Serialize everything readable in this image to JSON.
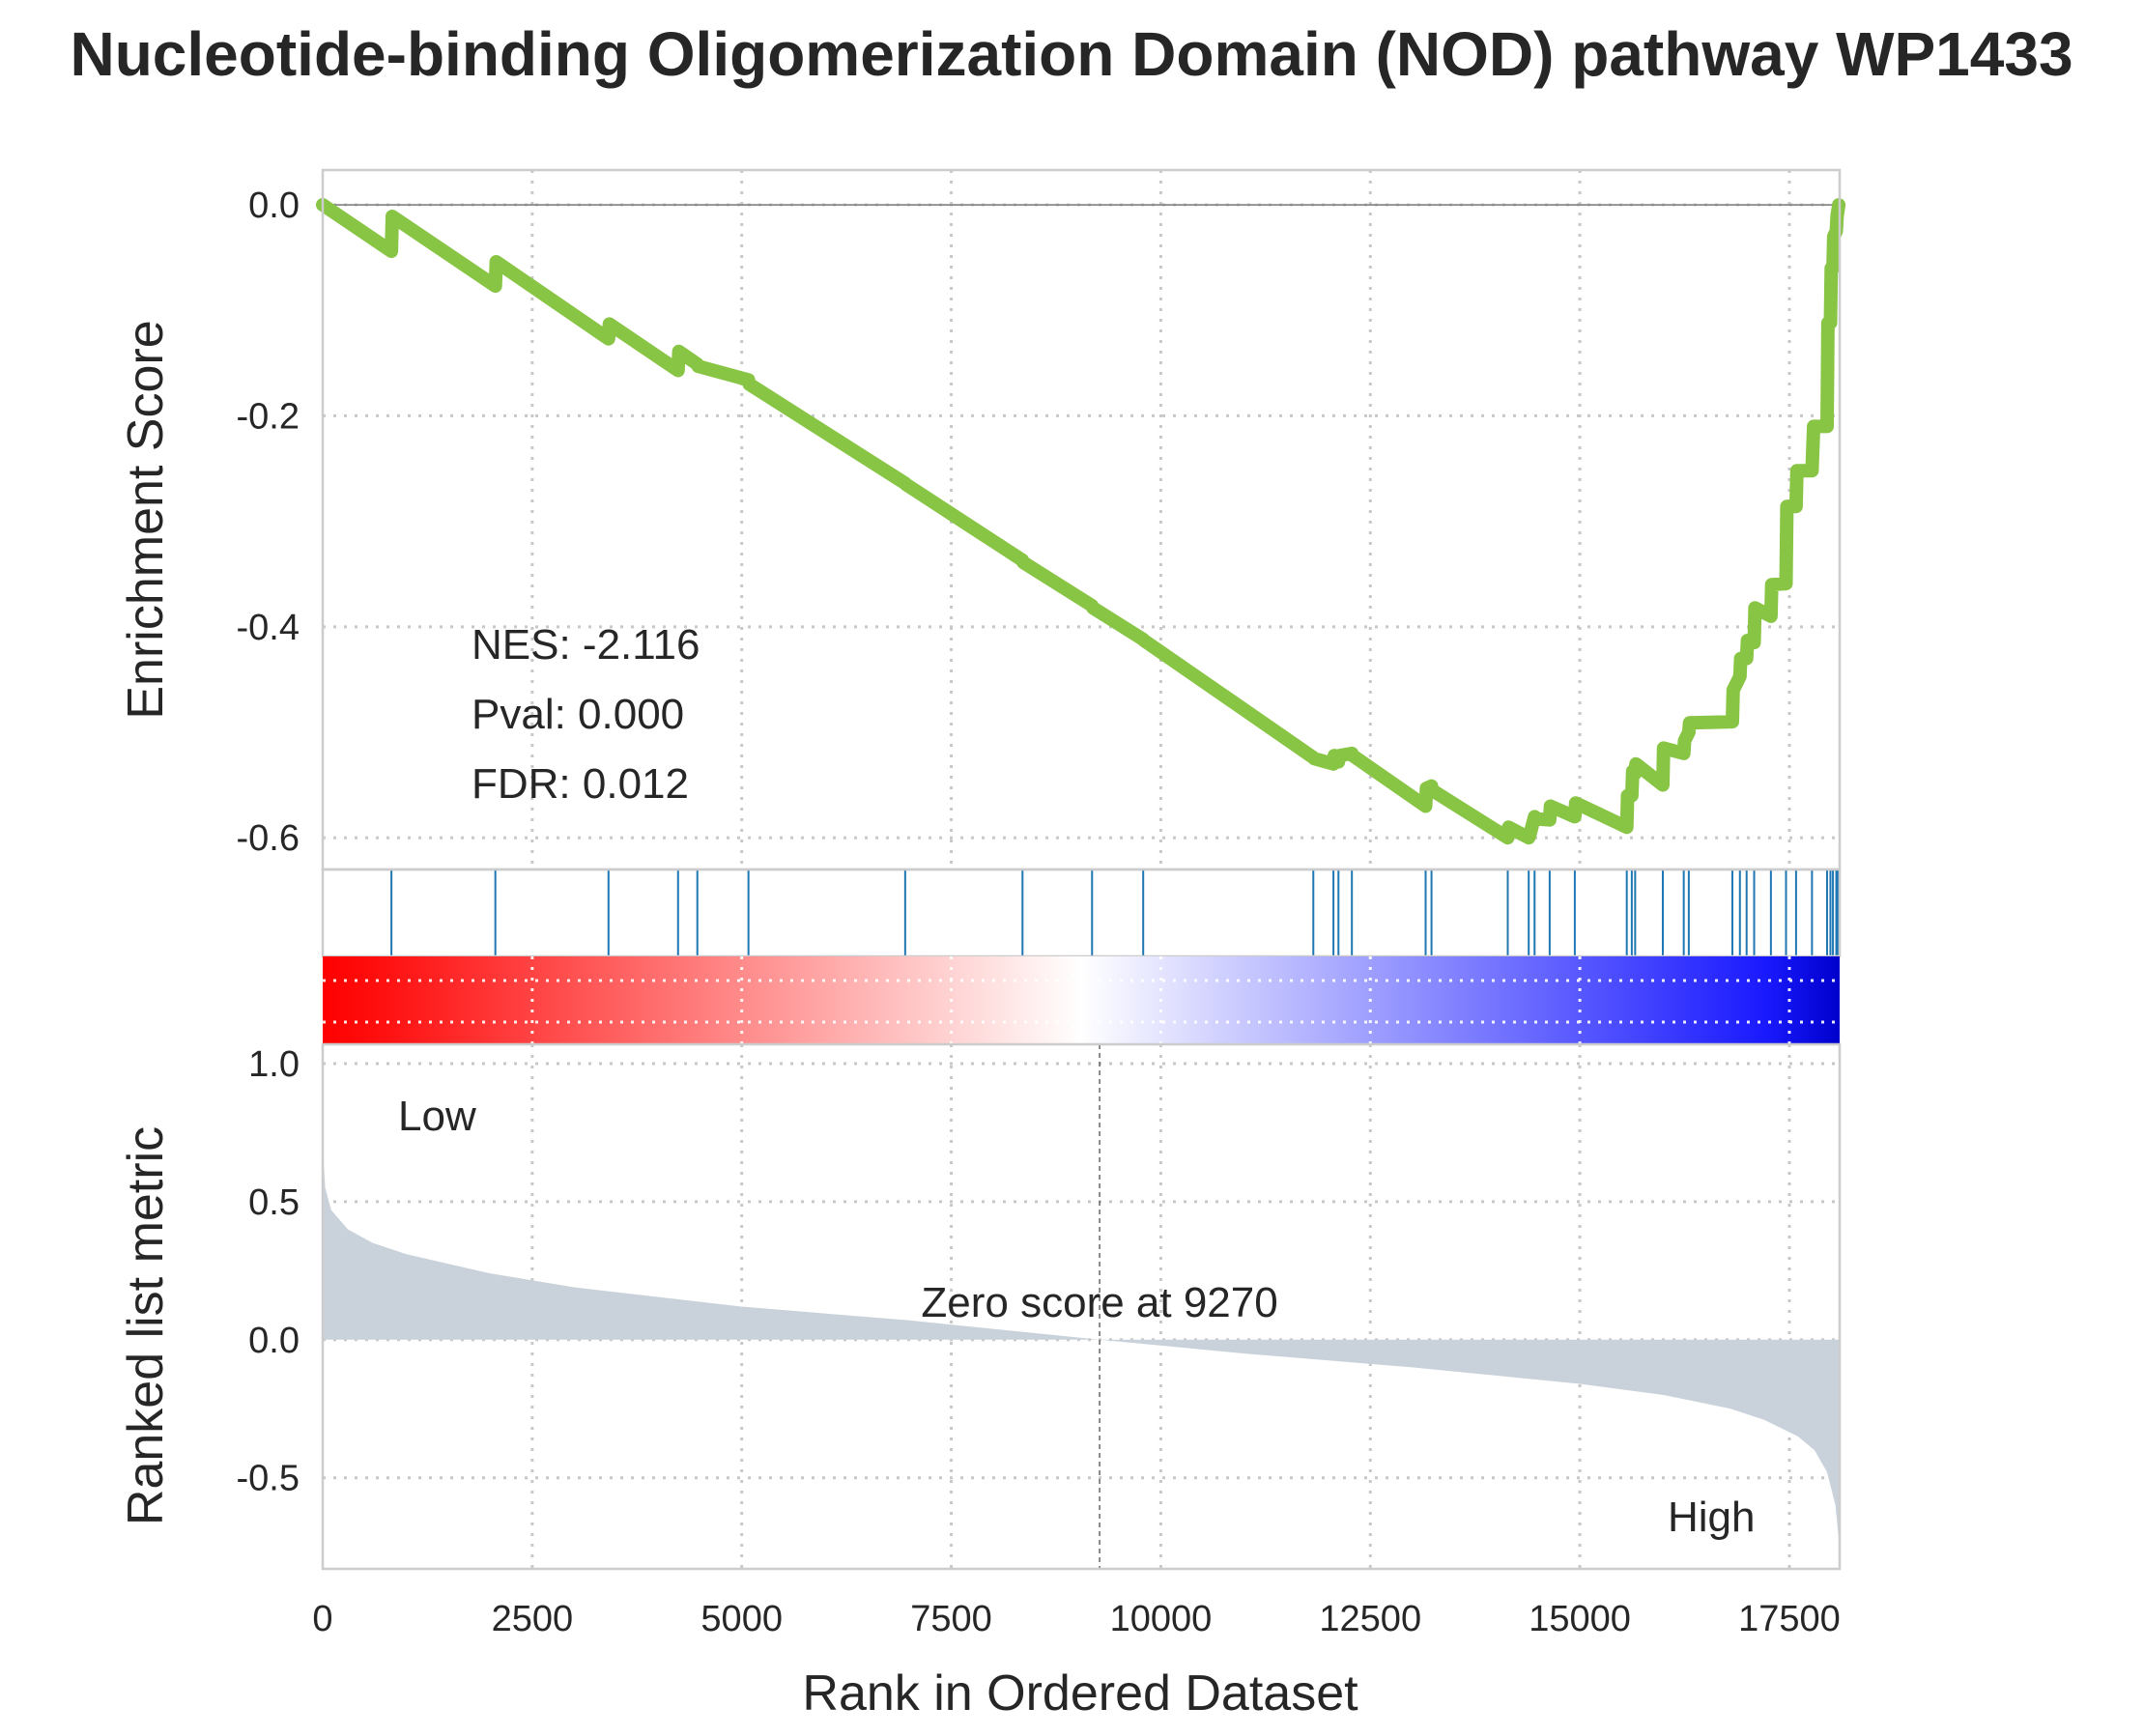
{
  "chart_data": {
    "type": "line",
    "title": "Nucleotide-binding Oligomerization Domain (NOD) pathway WP1433",
    "xlabel": "Rank in Ordered Dataset",
    "xlim": [
      0,
      18100
    ],
    "xticks": [
      "0",
      "2500",
      "5000",
      "7500",
      "10000",
      "12500",
      "15000",
      "17500"
    ],
    "enrichment": {
      "ylabel": "Enrichment Score",
      "ylim": [
        -0.63,
        0.033
      ],
      "yticks": [
        "0.0",
        "-0.2",
        "-0.4",
        "-0.6"
      ],
      "line_color": "#88c544",
      "hit_ranks": [
        820,
        2060,
        3410,
        4240,
        4470,
        5080,
        6950,
        8350,
        9180,
        9790,
        11820,
        12060,
        12120,
        12280,
        13160,
        13230,
        14140,
        14390,
        14460,
        14640,
        14940,
        15560,
        15620,
        15660,
        15990,
        16240,
        16300,
        16820,
        16910,
        16990,
        17080,
        17280,
        17460,
        17580,
        17770,
        17950,
        17990,
        18020,
        18060,
        18080
      ],
      "x": [
        0,
        820,
        830,
        2060,
        2070,
        3410,
        3420,
        4240,
        4250,
        4470,
        4480,
        5080,
        5090,
        6950,
        6960,
        8350,
        8360,
        9180,
        9190,
        9790,
        9800,
        11820,
        11830,
        12060,
        12070,
        12120,
        12130,
        12280,
        12290,
        13160,
        13170,
        13230,
        13240,
        14140,
        14150,
        14390,
        14400,
        14460,
        14470,
        14640,
        14650,
        14940,
        14950,
        15560,
        15570,
        15620,
        15630,
        15660,
        15670,
        15990,
        16000,
        16240,
        16250,
        16300,
        16310,
        16820,
        16830,
        16910,
        16920,
        16990,
        17000,
        17080,
        17090,
        17280,
        17290,
        17460,
        17470,
        17580,
        17590,
        17770,
        17790,
        17950,
        17960,
        17990,
        18000,
        18020,
        18030,
        18060,
        18070,
        18080,
        18090
      ],
      "y": [
        0.0,
        -0.044,
        -0.011,
        -0.077,
        -0.054,
        -0.127,
        -0.113,
        -0.157,
        -0.139,
        -0.151,
        -0.153,
        -0.166,
        -0.17,
        -0.264,
        -0.265,
        -0.337,
        -0.339,
        -0.38,
        -0.382,
        -0.412,
        -0.413,
        -0.524,
        -0.525,
        -0.53,
        -0.522,
        -0.528,
        -0.522,
        -0.52,
        -0.522,
        -0.57,
        -0.553,
        -0.551,
        -0.555,
        -0.6,
        -0.59,
        -0.6,
        -0.598,
        -0.58,
        -0.582,
        -0.583,
        -0.57,
        -0.58,
        -0.567,
        -0.59,
        -0.56,
        -0.56,
        -0.537,
        -0.539,
        -0.53,
        -0.55,
        -0.515,
        -0.52,
        -0.508,
        -0.5,
        -0.491,
        -0.49,
        -0.46,
        -0.447,
        -0.43,
        -0.43,
        -0.413,
        -0.415,
        -0.382,
        -0.39,
        -0.36,
        -0.359,
        -0.286,
        -0.286,
        -0.252,
        -0.252,
        -0.21,
        -0.21,
        -0.112,
        -0.112,
        -0.06,
        -0.06,
        -0.03,
        -0.025,
        -0.01,
        -0.005,
        0.0
      ]
    },
    "stats": {
      "nes": "NES: -2.116",
      "pval": "Pval: 0.000",
      "fdr": "FDR: 0.012"
    },
    "ranked_metric": {
      "type": "area",
      "ylabel": "Ranked list metric",
      "ylim": [
        -0.83,
        1.07
      ],
      "yticks": [
        "1.0",
        "0.5",
        "0.0",
        "-0.5"
      ],
      "fill_color": "#c9d2da",
      "x": [
        0,
        30,
        100,
        300,
        600,
        1000,
        2000,
        3000,
        5000,
        7000,
        9270,
        11000,
        13000,
        15000,
        16000,
        16800,
        17200,
        17600,
        17800,
        17950,
        18050,
        18100
      ],
      "y": [
        0.7,
        0.55,
        0.47,
        0.4,
        0.35,
        0.31,
        0.24,
        0.19,
        0.12,
        0.07,
        0.0,
        -0.05,
        -0.1,
        -0.16,
        -0.2,
        -0.25,
        -0.29,
        -0.35,
        -0.4,
        -0.48,
        -0.6,
        -0.76
      ],
      "zero_cross": 9270,
      "zero_label": "Zero score at 9270",
      "low_label": "Low",
      "high_label": "High",
      "low_color": "#ff0000",
      "high_color": "#0000ff"
    },
    "colorbar": {
      "colors": [
        "#ff0000",
        "#ffffff",
        "#0000cc"
      ]
    }
  }
}
